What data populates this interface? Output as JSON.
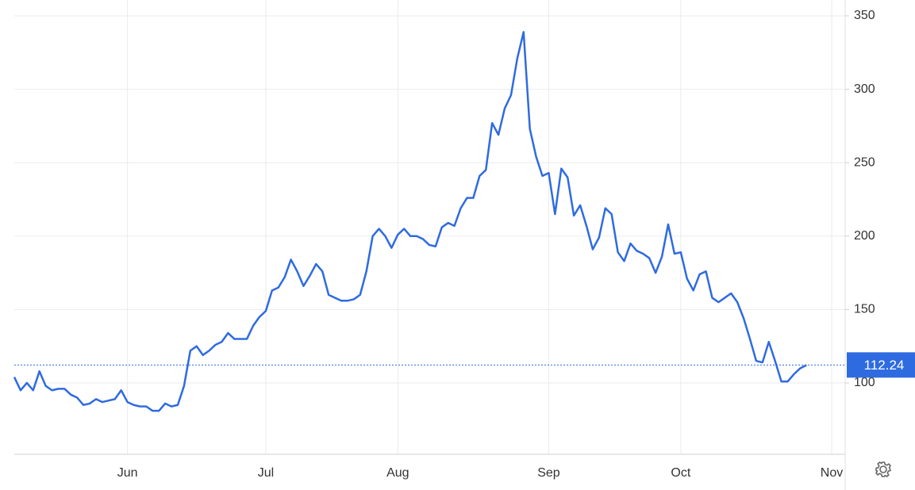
{
  "chart_data": {
    "type": "line",
    "categories": [
      null,
      null,
      null,
      null,
      null,
      null,
      null,
      null,
      null,
      null,
      null,
      null,
      null,
      null,
      null,
      null,
      null,
      null,
      "Jun",
      null,
      null,
      null,
      null,
      null,
      null,
      null,
      null,
      null,
      null,
      null,
      null,
      null,
      null,
      null,
      null,
      null,
      null,
      null,
      null,
      null,
      "Jul",
      null,
      null,
      null,
      null,
      null,
      null,
      null,
      null,
      null,
      null,
      null,
      null,
      null,
      null,
      null,
      null,
      null,
      null,
      null,
      null,
      "Aug",
      null,
      null,
      null,
      null,
      null,
      null,
      null,
      null,
      null,
      null,
      null,
      null,
      null,
      null,
      null,
      null,
      null,
      null,
      null,
      null,
      null,
      null,
      null,
      "Sep",
      null,
      null,
      null,
      null,
      null,
      null,
      null,
      null,
      null,
      null,
      null,
      null,
      null,
      null,
      null,
      null,
      null,
      null,
      null,
      null,
      "Oct",
      null,
      null,
      null,
      null,
      null,
      null,
      null,
      null,
      null,
      null,
      null,
      null,
      null,
      null,
      null,
      null,
      null,
      null,
      null,
      null,
      null,
      null,
      null,
      "Nov"
    ],
    "values": [
      104,
      95,
      100,
      95,
      108,
      98,
      95,
      96,
      96,
      92,
      90,
      85,
      86,
      89,
      87,
      88,
      89,
      95,
      87,
      85,
      84,
      84,
      81,
      81,
      86,
      84,
      85,
      98,
      122,
      125,
      119,
      122,
      126,
      128,
      134,
      130,
      130,
      130,
      139,
      145,
      149,
      163,
      165,
      172,
      184,
      176,
      166,
      173,
      181,
      176,
      160,
      158,
      156,
      156,
      157,
      160,
      176,
      200,
      205,
      200,
      192,
      201,
      205,
      200,
      200,
      198,
      194,
      193,
      206,
      209,
      207,
      219,
      226,
      226,
      241,
      245,
      277,
      269,
      287,
      296,
      321,
      339,
      273,
      254,
      241,
      243,
      215,
      246,
      240,
      214,
      221,
      207,
      191,
      199,
      219,
      215,
      189,
      183,
      195,
      190,
      188,
      185,
      175,
      186,
      208,
      188,
      189,
      171,
      163,
      174,
      176,
      158,
      155,
      158,
      161,
      155,
      144,
      130,
      115,
      114,
      128,
      115,
      101,
      101,
      106,
      110,
      112.24,
      null,
      null,
      null,
      null
    ],
    "color": "#2f6be0",
    "current_value": 112.24,
    "ylim": [
      51.4,
      360.8
    ],
    "yticks": [
      100,
      150,
      200,
      250,
      300,
      350
    ],
    "grid": true
  }
}
